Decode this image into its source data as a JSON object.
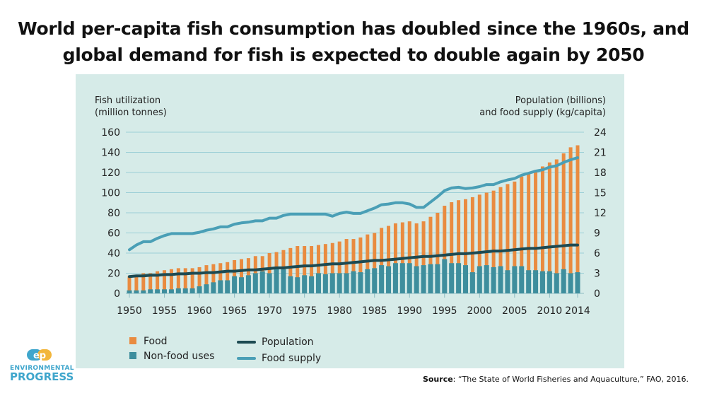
{
  "title": "World per-capita fish consumption has doubled since the 1960s, and global demand for fish is expected to double again by 2050",
  "source_label": "Source",
  "source_text": ": “The State of World Fisheries and Aquaculture,” FAO, 2016.",
  "logo": {
    "mark": "ep",
    "line1": "ENVIRONMENTAL",
    "line2": "PROGRESS"
  },
  "chart_data": {
    "type": "bar+line",
    "left_axis_label_1": "Fish utilization",
    "left_axis_label_2": "(million tonnes)",
    "right_axis_label_1": "Population (billions)",
    "right_axis_label_2": "and food supply (kg/capita)",
    "ylim_left": [
      0,
      160
    ],
    "ylim_right": [
      0,
      24
    ],
    "left_ticks": [
      "0",
      "20",
      "40",
      "60",
      "80",
      "100",
      "120",
      "140",
      "160"
    ],
    "right_ticks": [
      "0",
      "3",
      "6",
      "9",
      "12",
      "15",
      "18",
      "21",
      "24"
    ],
    "x_ticks": [
      "1950",
      "1955",
      "1960",
      "1965",
      "1970",
      "1975",
      "1980",
      "1985",
      "1990",
      "1995",
      "2000",
      "2005",
      "2010",
      "2014"
    ],
    "grid": true,
    "legend_position": "bottom",
    "colors": {
      "food": "#e98b40",
      "nonfood": "#3e8e9d",
      "population": "#1d4a52",
      "food_supply": "#4a9fb6",
      "background": "#d6ebe8"
    },
    "x_start": 1950,
    "series": [
      {
        "name": "Food",
        "type": "bar",
        "axis": "left",
        "values": [
          17,
          18,
          20,
          20,
          22,
          23,
          24,
          25,
          25,
          25,
          26,
          28,
          29,
          30,
          31,
          33,
          34,
          35,
          37,
          37,
          40,
          41,
          43,
          45,
          47,
          47,
          47,
          48,
          49,
          50,
          51.5,
          54,
          54,
          55.5,
          58.5,
          60,
          65,
          67,
          69.5,
          70.5,
          71.5,
          69.5,
          71.5,
          76,
          80,
          87,
          90.5,
          92.5,
          93.5,
          95.5,
          98,
          100,
          102,
          105.5,
          108.5,
          111,
          116,
          118.5,
          120.5,
          126,
          130,
          133,
          139,
          145,
          147
        ]
      },
      {
        "name": "Non-food uses",
        "type": "bar",
        "axis": "left",
        "values": [
          3,
          3,
          3,
          4,
          4,
          4,
          4,
          5,
          5,
          5,
          7,
          9,
          11,
          13,
          13,
          17,
          16,
          18,
          20,
          22,
          20,
          25,
          24,
          17,
          16,
          18,
          17,
          20,
          19,
          20,
          20,
          20,
          22,
          21,
          24,
          25,
          28,
          27,
          30,
          30,
          30,
          27,
          28,
          29,
          29,
          34,
          30,
          30,
          28,
          21,
          27,
          28,
          26,
          27,
          23,
          27,
          27,
          23,
          23,
          22,
          22,
          20,
          24,
          20,
          21
        ]
      },
      {
        "name": "Population",
        "type": "line",
        "axis": "right",
        "values": [
          2.5,
          2.6,
          2.6,
          2.7,
          2.7,
          2.8,
          2.8,
          2.9,
          2.9,
          3.0,
          3.0,
          3.1,
          3.1,
          3.2,
          3.3,
          3.3,
          3.4,
          3.5,
          3.5,
          3.6,
          3.7,
          3.8,
          3.8,
          3.9,
          4.0,
          4.1,
          4.1,
          4.2,
          4.3,
          4.4,
          4.4,
          4.5,
          4.6,
          4.7,
          4.8,
          4.9,
          4.9,
          5.0,
          5.1,
          5.2,
          5.3,
          5.4,
          5.5,
          5.5,
          5.6,
          5.7,
          5.8,
          5.9,
          5.9,
          6.0,
          6.1,
          6.2,
          6.3,
          6.3,
          6.4,
          6.5,
          6.6,
          6.7,
          6.7,
          6.8,
          6.9,
          7.0,
          7.1,
          7.2,
          7.2
        ]
      },
      {
        "name": "Food supply",
        "type": "line",
        "axis": "right",
        "values": [
          6.5,
          7.2,
          7.7,
          7.7,
          8.2,
          8.6,
          8.9,
          8.9,
          8.9,
          8.9,
          9.1,
          9.4,
          9.6,
          9.9,
          9.9,
          10.3,
          10.5,
          10.6,
          10.8,
          10.8,
          11.2,
          11.2,
          11.6,
          11.8,
          11.8,
          11.8,
          11.8,
          11.8,
          11.8,
          11.5,
          11.9,
          12.1,
          11.9,
          11.9,
          12.3,
          12.7,
          13.2,
          13.3,
          13.5,
          13.5,
          13.3,
          12.8,
          12.8,
          13.6,
          14.4,
          15.3,
          15.7,
          15.8,
          15.6,
          15.7,
          15.9,
          16.2,
          16.2,
          16.6,
          16.9,
          17.1,
          17.6,
          17.9,
          18.2,
          18.4,
          18.8,
          19.0,
          19.5,
          19.9,
          20.2
        ]
      }
    ]
  }
}
